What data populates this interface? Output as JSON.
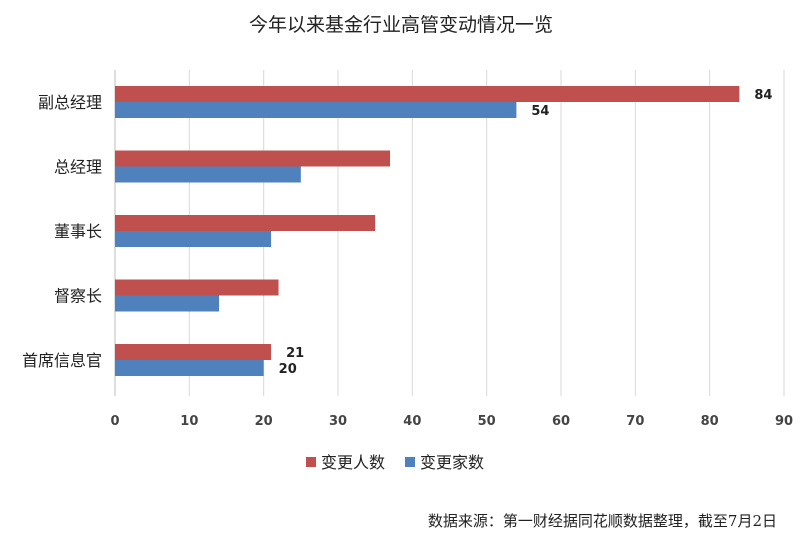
{
  "chart_data": {
    "type": "bar",
    "orientation": "horizontal",
    "title": "今年以来基金行业高管变动情况一览",
    "categories": [
      "副总经理",
      "总经理",
      "董事长",
      "督察长",
      "首席信息官"
    ],
    "series": [
      {
        "name": "变更人数",
        "values": [
          84,
          37,
          35,
          22,
          21
        ],
        "color": "#c0504d",
        "labels": {
          "0": "84",
          "4": "21"
        }
      },
      {
        "name": "变更家数",
        "values": [
          54,
          25,
          21,
          14,
          20
        ],
        "color": "#4f81bd",
        "labels": {
          "0": "54",
          "4": "20"
        }
      }
    ],
    "xlim": [
      0,
      90
    ],
    "xticks": [
      "0",
      "10",
      "20",
      "30",
      "40",
      "50",
      "60",
      "70",
      "80",
      "90"
    ],
    "grid": true,
    "legend": "bottom"
  },
  "source": "数据来源：第一财经据同花顺数据整理，截至7月2日"
}
